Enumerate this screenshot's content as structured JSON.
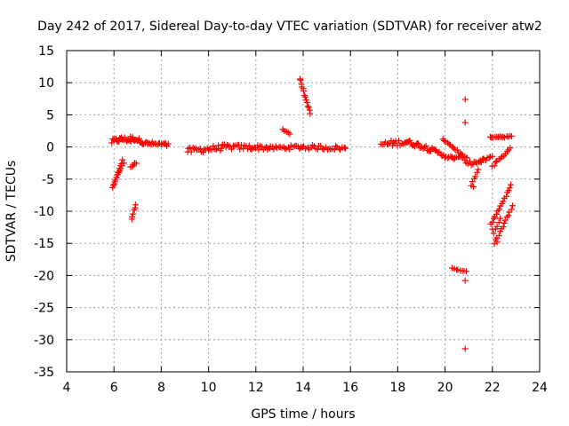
{
  "chart_data": {
    "type": "scatter",
    "title": "Day 242 of 2017, Sidereal Day-to-day VTEC variation (SDTVAR) for receiver atw2",
    "xlabel": "GPS time / hours",
    "ylabel": "SDTVAR / TECUs",
    "xlim": [
      4,
      24
    ],
    "ylim": [
      -35,
      15
    ],
    "x_ticks": [
      4,
      6,
      8,
      10,
      12,
      14,
      16,
      18,
      20,
      22,
      24
    ],
    "y_ticks": [
      15,
      10,
      5,
      0,
      -5,
      -10,
      -15,
      -20,
      -25,
      -30,
      -35
    ],
    "grid": true,
    "marker": "+",
    "marker_color": "#ff0000",
    "series": [
      {
        "name": "SDTVAR",
        "segments": [
          {
            "x0": 5.9,
            "x1": 6.3,
            "y0": 0.8,
            "y1": 1.2,
            "n": 10,
            "noise": 0.8
          },
          {
            "x0": 6.3,
            "x1": 6.7,
            "y0": 1.3,
            "y1": 1.0,
            "n": 10,
            "noise": 0.7
          },
          {
            "x0": 6.7,
            "x1": 7.2,
            "y0": 1.4,
            "y1": 0.9,
            "n": 12,
            "noise": 0.6
          },
          {
            "x0": 7.2,
            "x1": 8.3,
            "y0": 0.6,
            "y1": 0.3,
            "n": 22,
            "noise": 0.6
          },
          {
            "x0": 5.95,
            "x1": 6.35,
            "y0": -6.5,
            "y1": -2.2,
            "n": 12,
            "noise": 0.5
          },
          {
            "x0": 6.05,
            "x1": 6.4,
            "y0": -5.0,
            "y1": -2.6,
            "n": 8,
            "noise": 0.4
          },
          {
            "x0": 6.7,
            "x1": 6.95,
            "y0": -3.2,
            "y1": -2.4,
            "n": 5,
            "noise": 0.3
          },
          {
            "x0": 6.75,
            "x1": 6.92,
            "y0": -11.2,
            "y1": -9.0,
            "n": 6,
            "noise": 0.3
          },
          {
            "x0": 9.1,
            "x1": 10.6,
            "y0": -0.6,
            "y1": -0.1,
            "n": 26,
            "noise": 0.9
          },
          {
            "x0": 10.6,
            "x1": 12.5,
            "y0": 0.0,
            "y1": -0.1,
            "n": 32,
            "noise": 0.8
          },
          {
            "x0": 12.5,
            "x1": 13.9,
            "y0": -0.2,
            "y1": 0.0,
            "n": 22,
            "noise": 0.6
          },
          {
            "x0": 13.9,
            "x1": 15.8,
            "y0": 0.0,
            "y1": -0.2,
            "n": 28,
            "noise": 0.7
          },
          {
            "x0": 13.15,
            "x1": 13.45,
            "y0": 2.7,
            "y1": 2.1,
            "n": 5,
            "noise": 0.2
          },
          {
            "x0": 13.85,
            "x1": 14.3,
            "y0": 10.7,
            "y1": 5.2,
            "n": 14,
            "noise": 0.3
          },
          {
            "x0": 17.3,
            "x1": 18.4,
            "y0": 0.4,
            "y1": 0.8,
            "n": 20,
            "noise": 0.9
          },
          {
            "x0": 18.4,
            "x1": 19.4,
            "y0": 0.8,
            "y1": -0.3,
            "n": 20,
            "noise": 0.8
          },
          {
            "x0": 19.4,
            "x1": 20.4,
            "y0": -0.4,
            "y1": -2.0,
            "n": 18,
            "noise": 0.7
          },
          {
            "x0": 20.4,
            "x1": 20.9,
            "y0": -1.5,
            "y1": -1.9,
            "n": 8,
            "noise": 0.5
          },
          {
            "x0": 19.9,
            "x1": 20.9,
            "y0": 1.3,
            "y1": -1.8,
            "n": 16,
            "noise": 0.3
          },
          {
            "x0": 20.9,
            "x1": 21.6,
            "y0": -2.6,
            "y1": -2.3,
            "n": 12,
            "noise": 0.6
          },
          {
            "x0": 21.1,
            "x1": 21.4,
            "y0": -6.0,
            "y1": -3.5,
            "n": 6,
            "noise": 0.3
          },
          {
            "x0": 21.5,
            "x1": 22.0,
            "y0": -2.2,
            "y1": -1.4,
            "n": 8,
            "noise": 0.5
          },
          {
            "x0": 22.0,
            "x1": 22.4,
            "y0": -3.0,
            "y1": -1.5,
            "n": 7,
            "noise": 0.4
          },
          {
            "x0": 22.4,
            "x1": 22.75,
            "y0": -1.5,
            "y1": -0.3,
            "n": 6,
            "noise": 0.3
          },
          {
            "x0": 21.9,
            "x1": 22.8,
            "y0": 1.6,
            "y1": 1.6,
            "n": 14,
            "noise": 0.3
          },
          {
            "x0": 20.3,
            "x1": 20.9,
            "y0": -18.9,
            "y1": -19.4,
            "n": 8,
            "noise": 0.15
          },
          {
            "x0": 21.95,
            "x1": 22.8,
            "y0": -12.0,
            "y1": -6.0,
            "n": 16,
            "noise": 0.3
          },
          {
            "x0": 22.1,
            "x1": 22.85,
            "y0": -15.0,
            "y1": -9.2,
            "n": 14,
            "noise": 0.3
          },
          {
            "x0": 22.05,
            "x1": 22.35,
            "y0": -13.5,
            "y1": -11.0,
            "n": 5,
            "noise": 0.3
          }
        ],
        "points": [
          [
            20.85,
            7.4
          ],
          [
            20.85,
            3.8
          ],
          [
            20.85,
            -20.8
          ],
          [
            20.85,
            -31.4
          ],
          [
            21.2,
            -6.2
          ],
          [
            22.0,
            -12.8
          ],
          [
            22.2,
            -14.8
          ]
        ]
      }
    ]
  }
}
